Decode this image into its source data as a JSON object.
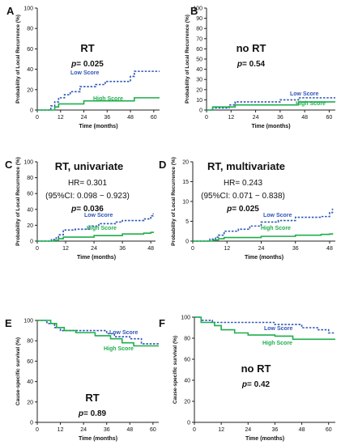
{
  "colors": {
    "low": "#2f55b8",
    "high": "#1fae4b",
    "axis": "#222222",
    "text": "#111111"
  },
  "chart_data": [
    {
      "type": "line",
      "letter": "A",
      "title": "RT",
      "stats": [
        "p= 0.025"
      ],
      "ylabel": "Probability of Local Recurrence (%)",
      "xlabel": "Time (months)",
      "xlim": [
        0,
        63
      ],
      "ylim": [
        0,
        100
      ],
      "xticks": [
        0,
        12,
        24,
        36,
        48,
        60
      ],
      "yticks": [
        0,
        20,
        40,
        60,
        80,
        100
      ],
      "series": [
        {
          "name": "Low Score",
          "style": "dashed",
          "x": [
            0,
            6,
            7,
            9,
            11,
            14,
            17,
            22,
            30,
            35,
            48,
            50,
            63
          ],
          "y": [
            0,
            0,
            4,
            8,
            12,
            15,
            18,
            23,
            25,
            28,
            33,
            38,
            38
          ]
        },
        {
          "name": "High Score",
          "style": "solid",
          "x": [
            0,
            7,
            9,
            11,
            24,
            48,
            50,
            63
          ],
          "y": [
            0,
            0,
            3,
            6,
            9,
            9,
            12,
            12
          ]
        }
      ]
    },
    {
      "type": "line",
      "letter": "B",
      "title": "no RT",
      "stats": [
        "p= 0.54"
      ],
      "ylabel": "Probability of Local Recurrence (%)",
      "xlabel": "Time (months)",
      "xlim": [
        0,
        63
      ],
      "ylim": [
        0,
        100
      ],
      "xticks": [
        0,
        12,
        24,
        36,
        48,
        60
      ],
      "yticks": [
        0,
        10,
        20,
        30,
        40,
        50,
        60,
        70,
        80,
        90,
        100
      ],
      "series": [
        {
          "name": "Low Score",
          "style": "dashed",
          "x": [
            0,
            3,
            11,
            14,
            36,
            45,
            63
          ],
          "y": [
            0,
            2,
            5,
            8,
            10,
            12,
            12
          ]
        },
        {
          "name": "High Score",
          "style": "solid",
          "x": [
            0,
            3,
            14,
            45,
            63
          ],
          "y": [
            0,
            3,
            5,
            8,
            8
          ]
        }
      ]
    },
    {
      "type": "line",
      "letter": "C",
      "title": "RT, univariate",
      "stats": [
        "HR= 0.301",
        "(95%CI: 0.098 − 0.923)",
        "p= 0.036"
      ],
      "ylabel": "Probability of Local Recurrence (%)",
      "xlabel": "Time (months)",
      "xlim": [
        0,
        50
      ],
      "ylim": [
        0,
        100
      ],
      "xticks": [
        0,
        12,
        24,
        36,
        48
      ],
      "yticks": [
        0,
        20,
        40,
        60,
        80,
        100
      ],
      "series": [
        {
          "name": "Low Score",
          "style": "dashed",
          "x": [
            0,
            6,
            8,
            9,
            11,
            16,
            22,
            26,
            33,
            36,
            45,
            48,
            49
          ],
          "y": [
            0,
            2,
            4,
            8,
            14,
            15,
            19,
            22,
            24,
            26,
            28,
            32,
            35
          ]
        },
        {
          "name": "High Score",
          "style": "solid",
          "x": [
            0,
            7,
            9,
            11,
            24,
            36,
            45,
            48,
            49
          ],
          "y": [
            0,
            1,
            3,
            5,
            7,
            9,
            10,
            11,
            12
          ]
        }
      ]
    },
    {
      "type": "line",
      "letter": "D",
      "title": "RT, multivariate",
      "stats": [
        "HR= 0.243",
        "(95%CI: 0.071 − 0.838)",
        "p= 0.025"
      ],
      "ylabel": "Probability of Local Recurrence (%)",
      "xlabel": "Time (months)",
      "xlim": [
        0,
        50
      ],
      "ylim": [
        0,
        20
      ],
      "xticks": [
        0,
        12,
        24,
        36,
        48
      ],
      "yticks": [
        0,
        5,
        10,
        15,
        20
      ],
      "series": [
        {
          "name": "Low Score",
          "style": "dashed",
          "x": [
            0,
            6,
            8,
            9,
            11,
            16,
            20,
            24,
            30,
            36,
            45,
            48,
            49
          ],
          "y": [
            0,
            0.5,
            1,
            1.5,
            2.5,
            3,
            3.8,
            4.8,
            5.2,
            6.0,
            6.2,
            7.2,
            8.2
          ]
        },
        {
          "name": "High Score",
          "style": "solid",
          "x": [
            0,
            7,
            9,
            11,
            24,
            36,
            45,
            48,
            49
          ],
          "y": [
            0,
            0.3,
            0.6,
            0.9,
            1.2,
            1.5,
            1.7,
            1.8,
            2.0
          ]
        }
      ]
    },
    {
      "type": "line",
      "letter": "E",
      "title": "RT",
      "stats": [
        "p= 0.89"
      ],
      "ylabel": "Cause-specific survival (%)",
      "xlabel": "Time (months)",
      "xlim": [
        0,
        63
      ],
      "ylim": [
        0,
        100
      ],
      "xticks": [
        0,
        12,
        24,
        36,
        48,
        60
      ],
      "yticks": [
        0,
        20,
        40,
        60,
        80,
        100
      ],
      "series": [
        {
          "name": "Low Score",
          "style": "dashed",
          "x": [
            0,
            5,
            9,
            12,
            20,
            36,
            40,
            48,
            54,
            63
          ],
          "y": [
            100,
            97,
            93,
            90,
            90,
            87,
            84,
            82,
            77,
            77
          ]
        },
        {
          "name": "High Score",
          "style": "solid",
          "x": [
            0,
            7,
            10,
            14,
            20,
            30,
            38,
            44,
            50,
            63
          ],
          "y": [
            100,
            97,
            93,
            90,
            88,
            85,
            82,
            78,
            75,
            75
          ]
        }
      ]
    },
    {
      "type": "line",
      "letter": "F",
      "title": "no RT",
      "stats": [
        "p= 0.42"
      ],
      "ylabel": "Cause-specific survival (%)",
      "xlabel": "Time (months)",
      "xlim": [
        0,
        63
      ],
      "ylim": [
        0,
        100
      ],
      "xticks": [
        0,
        12,
        24,
        36,
        48,
        60
      ],
      "yticks": [
        0,
        20,
        40,
        60,
        80,
        100
      ],
      "series": [
        {
          "name": "Low Score",
          "style": "dashed",
          "x": [
            0,
            3,
            8,
            24,
            36,
            48,
            55,
            60,
            63
          ],
          "y": [
            100,
            97,
            95,
            95,
            93,
            90,
            88,
            85,
            85
          ]
        },
        {
          "name": "High Score",
          "style": "solid",
          "x": [
            0,
            3,
            9,
            12,
            18,
            24,
            36,
            44,
            63
          ],
          "y": [
            100,
            95,
            92,
            88,
            85,
            83,
            82,
            79,
            79
          ]
        }
      ]
    }
  ]
}
